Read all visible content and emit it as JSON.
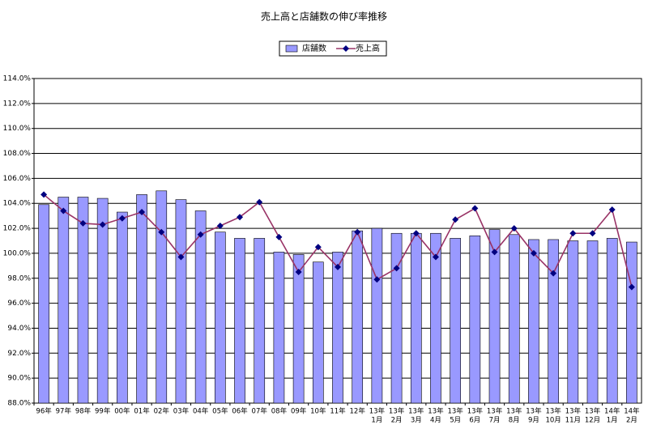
{
  "chart_data": {
    "type": "bar_line",
    "title": "売上高と店舗数の伸び率推移",
    "categories": [
      "96年",
      "97年",
      "98年",
      "99年",
      "00年",
      "01年",
      "02年",
      "03年",
      "04年",
      "05年",
      "06年",
      "07年",
      "08年",
      "09年",
      "10年",
      "11年",
      "12年",
      [
        "13年",
        "1月"
      ],
      [
        "13年",
        "2月"
      ],
      [
        "13年",
        "3月"
      ],
      [
        "13年",
        "4月"
      ],
      [
        "13年",
        "5月"
      ],
      [
        "13年",
        "6月"
      ],
      [
        "13年",
        "7月"
      ],
      [
        "13年",
        "8月"
      ],
      [
        "13年",
        "9月"
      ],
      [
        "13年",
        "10月"
      ],
      [
        "13年",
        "11月"
      ],
      [
        "13年",
        "12月"
      ],
      [
        "14年",
        "1月"
      ],
      [
        "14年",
        "2月"
      ]
    ],
    "series": [
      {
        "name": "店舗数",
        "type": "bar",
        "color": "#9999ff",
        "values": [
          103.9,
          104.5,
          104.5,
          104.4,
          103.3,
          104.7,
          105.0,
          104.3,
          103.4,
          101.7,
          101.2,
          101.2,
          100.1,
          99.9,
          99.3,
          100.1,
          101.8,
          102.0,
          101.6,
          101.6,
          101.6,
          101.2,
          101.4,
          101.9,
          101.5,
          101.1,
          101.1,
          101.0,
          101.0,
          101.2,
          100.9
        ]
      },
      {
        "name": "売上高",
        "type": "line",
        "color": "#993366",
        "marker_color": "#000080",
        "values": [
          104.7,
          103.4,
          102.4,
          102.3,
          102.8,
          103.3,
          101.7,
          99.7,
          101.5,
          102.2,
          102.9,
          104.1,
          101.3,
          98.5,
          100.5,
          98.9,
          101.7,
          97.9,
          98.8,
          101.6,
          99.7,
          102.7,
          103.6,
          100.1,
          102.0,
          100.0,
          98.4,
          101.6,
          101.6,
          103.5,
          97.3
        ]
      }
    ],
    "ylim": [
      88,
      114
    ],
    "yticks": [
      {
        "value": 88,
        "label": "88.0%"
      },
      {
        "value": 90,
        "label": "90.0%"
      },
      {
        "value": 92,
        "label": "92.0%"
      },
      {
        "value": 94,
        "label": "94.0%"
      },
      {
        "value": 96,
        "label": "96.0%"
      },
      {
        "value": 98,
        "label": "98.0%"
      },
      {
        "value": 100,
        "label": "100.0%"
      },
      {
        "value": 102,
        "label": "102.0%"
      },
      {
        "value": 104,
        "label": "104.0%"
      },
      {
        "value": 106,
        "label": "106.0%"
      },
      {
        "value": 108,
        "label": "108.0%"
      },
      {
        "value": 110,
        "label": "110.0%"
      },
      {
        "value": 112,
        "label": "112.0%"
      },
      {
        "value": 114,
        "label": "114.0%"
      }
    ],
    "grid": true,
    "legend": "top"
  }
}
